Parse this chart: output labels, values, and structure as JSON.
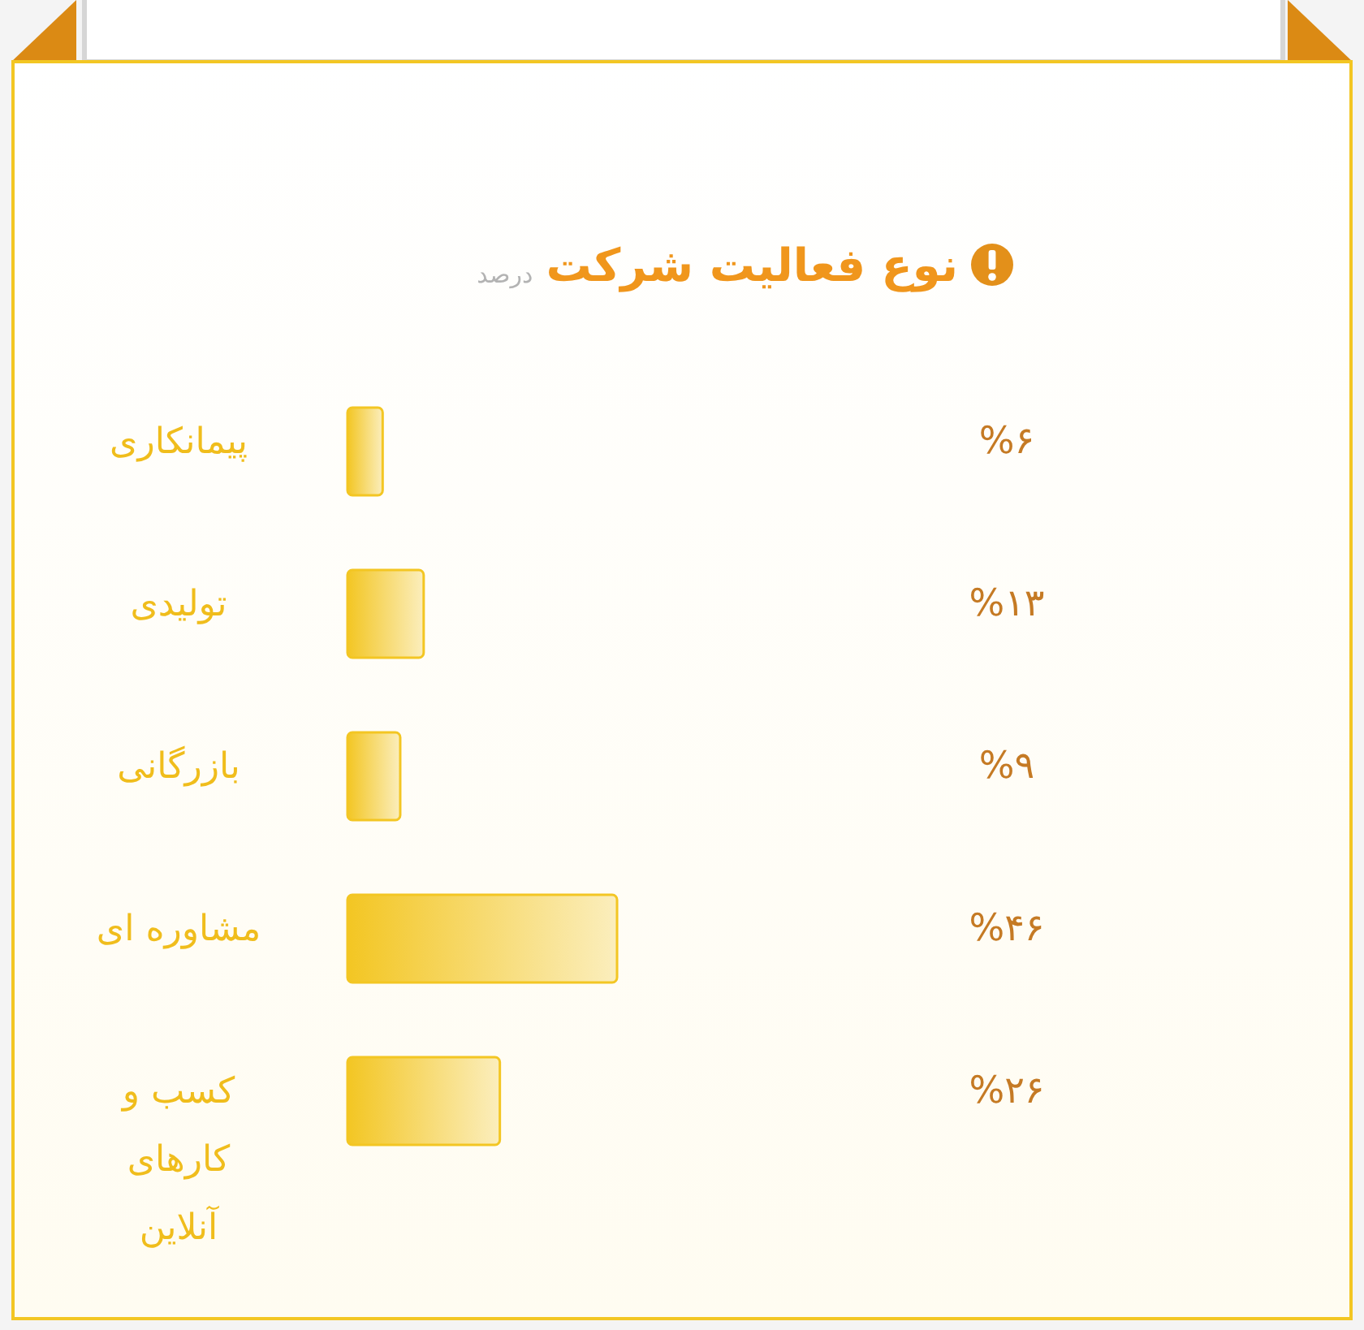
{
  "chart_data": {
    "type": "bar",
    "orientation": "horizontal",
    "title": "نوع فعالیت شرکت",
    "subtitle": "درصد",
    "categories": [
      "پیمانکاری",
      "تولیدی",
      "بازرگانی",
      "مشاوره ای",
      "کسب و کارهای آنلاین"
    ],
    "values": [
      6,
      13,
      9,
      46,
      26
    ],
    "value_labels": [
      "%۶",
      "%۱۳",
      "%۹",
      "%۴۶",
      "%۲۶"
    ],
    "color": "#f3c623"
  }
}
